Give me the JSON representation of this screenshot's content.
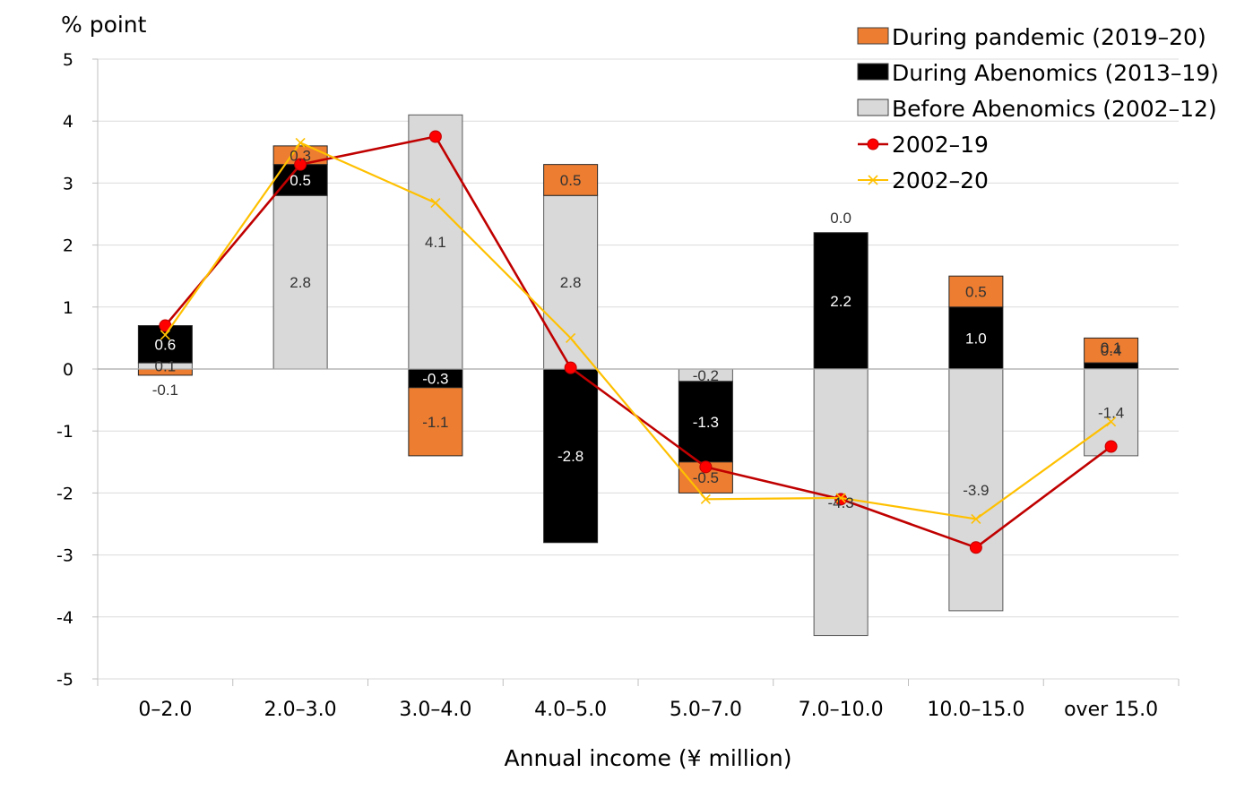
{
  "chart_data": {
    "type": "bar",
    "stacked": true,
    "ylabel": "% point",
    "xlabel": "Annual income (¥ million)",
    "ylim": [
      -5,
      5
    ],
    "yticks": [
      5,
      4,
      3,
      2,
      1,
      0,
      -1,
      -2,
      -3,
      -4,
      -5
    ],
    "grid": true,
    "legend_position": "top-right",
    "categories": [
      "0–2.0",
      "2.0–3.0",
      "3.0–4.0",
      "4.0–5.0",
      "5.0–7.0",
      "7.0–10.0",
      "10.0–15.0",
      "over 15.0"
    ],
    "series": [
      {
        "name": "Before Abenomics (2002–12)",
        "kind": "bar",
        "color": "#d9d9d9",
        "values": [
          0.1,
          2.8,
          4.1,
          2.8,
          -0.2,
          -4.3,
          -3.9,
          -1.4
        ],
        "labels": [
          "0.1",
          "2.8",
          "4.1",
          "2.8",
          "-0.2",
          "-4.3",
          "-3.9",
          "-1.4"
        ]
      },
      {
        "name": "During Abenomics (2013–19)",
        "kind": "bar",
        "color": "#000000",
        "values": [
          0.6,
          0.5,
          -0.3,
          -2.8,
          -1.3,
          2.2,
          1.0,
          0.1
        ],
        "labels": [
          "0.6",
          "0.5",
          "-0.3",
          "-2.8",
          "-1.3",
          "2.2",
          "1.0",
          "0.1"
        ]
      },
      {
        "name": "During pandemic (2019–20)",
        "kind": "bar",
        "color": "#ed7d31",
        "values": [
          -0.1,
          0.3,
          -1.1,
          0.5,
          -0.5,
          0.0,
          0.5,
          0.4
        ],
        "labels": [
          "-0.1",
          "0.3",
          "-1.1",
          "0.5",
          "-0.5",
          "0.0",
          "0.5",
          "0.4"
        ]
      },
      {
        "name": "2002–19",
        "kind": "line",
        "marker": "circle",
        "color": "#c00000",
        "values": [
          0.7,
          3.3,
          3.75,
          0.02,
          -1.58,
          -2.1,
          -2.88,
          -1.25
        ]
      },
      {
        "name": "2002–20",
        "kind": "line",
        "marker": "x",
        "color": "#ffc000",
        "values": [
          0.55,
          3.65,
          2.68,
          0.5,
          -2.1,
          -2.08,
          -2.42,
          -0.85
        ]
      }
    ],
    "legend": [
      {
        "label": "During pandemic (2019–20)",
        "swatch": "box",
        "color": "#ed7d31"
      },
      {
        "label": "During Abenomics (2013–19)",
        "swatch": "box",
        "color": "#000000"
      },
      {
        "label": "Before Abenomics (2002–12)",
        "swatch": "box",
        "color": "#d9d9d9"
      },
      {
        "label": "2002–19",
        "swatch": "line-circle",
        "color": "#c00000"
      },
      {
        "label": "2002–20",
        "swatch": "line-x",
        "color": "#ffc000"
      }
    ]
  }
}
